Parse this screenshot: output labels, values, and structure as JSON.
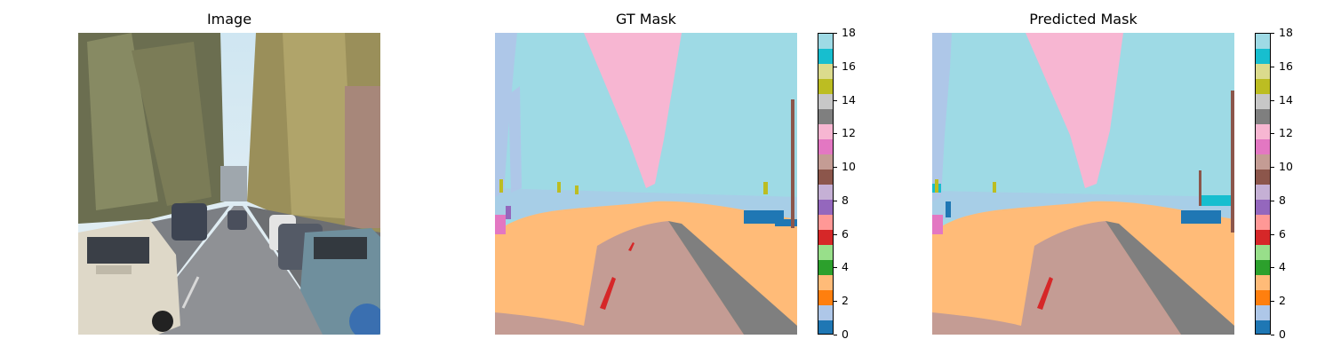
{
  "panels": {
    "image": {
      "title": "Image"
    },
    "gt": {
      "title": "GT Mask"
    },
    "pred": {
      "title": "Predicted Mask"
    }
  },
  "colorbar": {
    "ticks": [
      "0",
      "2",
      "4",
      "6",
      "8",
      "10",
      "12",
      "14",
      "16",
      "18"
    ],
    "colors": [
      "#1f77b4",
      "#aec7e8",
      "#ff7f0e",
      "#ffbb78",
      "#2ca02c",
      "#98df8a",
      "#d62728",
      "#ff9896",
      "#9467bd",
      "#c5b0d5",
      "#8c564b",
      "#c49c94",
      "#e377c2",
      "#f7b6d2",
      "#7f7f7f",
      "#c7c7c7",
      "#bcbd22",
      "#dbdb8d",
      "#17becf",
      "#9edae5"
    ]
  },
  "classes": {
    "sky": "#9edae5",
    "tree": "#f7b6d2",
    "road": "#c49c94",
    "sidewalk_vegetation": "#ffbb78",
    "pole": "#8c564b",
    "lane_marking": "#d62728",
    "curb": "#7f7f7f",
    "car": "#1f77b4",
    "building": "#aec7e8",
    "sign": "#bcbd22",
    "person": "#e377c2",
    "rider": "#9467bd",
    "truck": "#17becf"
  }
}
